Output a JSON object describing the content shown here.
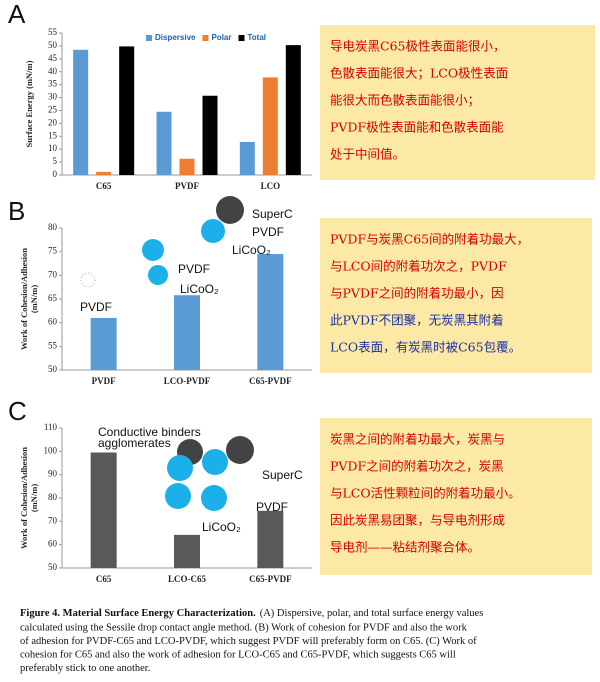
{
  "chart_data": [
    {
      "type": "bar",
      "panel": "A",
      "ylabel": "Surface Energy (mN/m)",
      "categories": [
        "C65",
        "PVDF",
        "LCO"
      ],
      "series": [
        {
          "name": "Dispersive",
          "color": "#5b9bd5",
          "values": [
            48.5,
            24.5,
            12.8
          ]
        },
        {
          "name": "Polar",
          "color": "#ed7d31",
          "values": [
            1.2,
            6.3,
            37.8
          ]
        },
        {
          "name": "Total",
          "color": "#000000",
          "values": [
            49.8,
            30.7,
            50.3
          ]
        }
      ],
      "ylim": [
        0,
        55
      ],
      "yticks": [
        0,
        5,
        10,
        15,
        20,
        25,
        30,
        35,
        40,
        45,
        50,
        55
      ],
      "legend": "top",
      "note": [
        "导电炭黑C65极性表面能很小，",
        "色散表面能很大；LCO极性表面",
        "能很大而色散表面能很小；",
        "PVDF极性表面能和色散表面能",
        "处于中间值。"
      ]
    },
    {
      "type": "bar",
      "panel": "B",
      "ylabel": [
        "Work of Cohesion/Adhesion",
        "(mN/m)"
      ],
      "categories": [
        "PVDF",
        "LCO-PVDF",
        "C65-PVDF"
      ],
      "values": [
        61,
        65.8,
        74.5
      ],
      "color": "#5b9bd5",
      "ylim": [
        50,
        80
      ],
      "yticks": [
        50,
        55,
        60,
        65,
        70,
        75,
        80
      ],
      "annotations": [
        "PVDF",
        "PVDF",
        "LiCoO₂",
        "SuperC",
        "PVDF",
        "LiCoO₂"
      ],
      "note": [
        "PVDF与炭黑C65间的附着功最大，",
        "与LCO间的附着功次之，PVDF",
        "与PVDF之间的附着功最小，因",
        "此PVDF不团聚，无炭黑其附着",
        "LCO表面，有炭黑时被C65包覆。"
      ]
    },
    {
      "type": "bar",
      "panel": "C",
      "ylabel": [
        "Work of Cohesion/Adhesion",
        "(mN/m)"
      ],
      "categories": [
        "C65",
        "LCO-C65",
        "C65-PVDF"
      ],
      "values": [
        99.5,
        64.2,
        74.5
      ],
      "color": "#595959",
      "ylim": [
        50,
        110
      ],
      "yticks": [
        50,
        60,
        70,
        80,
        90,
        100,
        110
      ],
      "annotations": [
        "Conductive binders",
        "agglomerates",
        "SuperC",
        "PVDF",
        "LiCoO₂"
      ],
      "note": [
        "炭黑之间的附着功最大，炭黑与",
        "PVDF之间的附着功次之，炭黑",
        "与LCO活性颗粒间的附着功最小。",
        "因此炭黑易团聚，与导电剂形成",
        "导电剂——粘结剂聚合体。"
      ]
    }
  ],
  "caption": {
    "title": "Figure 4.  Material Surface Energy Characterization.",
    "lines": [
      "(A) Dispersive, polar, and total surface energy values",
      "calculated using the Sessile drop contact angle method. (B) Work of cohesion for PVDF and also the work",
      "of adhesion for PVDF-C65 and LCO-PVDF, which suggest PVDF will preferably form on C65. (C) Work of",
      "cohesion for C65 and also the work of adhesion for LCO-C65 and C65-PVDF, which suggests C65 will",
      "preferably stick to one another."
    ]
  }
}
